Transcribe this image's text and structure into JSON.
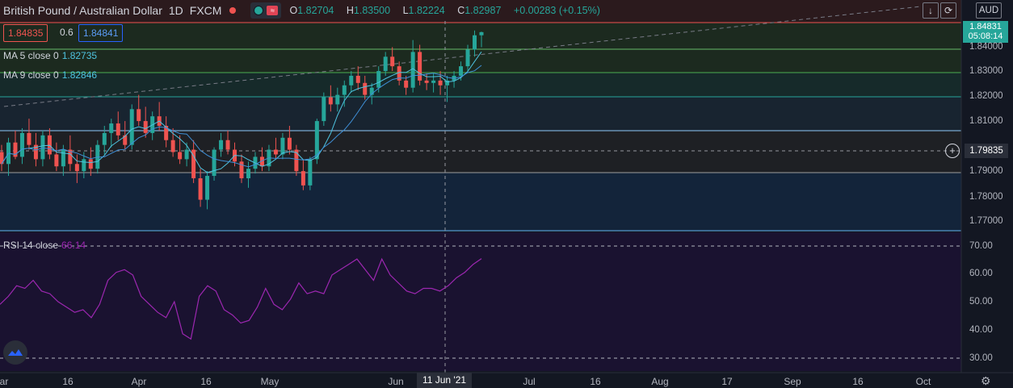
{
  "header": {
    "title": "British Pound / Australian Dollar",
    "interval": "1D",
    "exchange": "FXCM",
    "ohlc": {
      "o_label": "O",
      "o": "1.82704",
      "h_label": "H",
      "h": "1.83500",
      "l_label": "L",
      "l": "1.82224",
      "c_label": "C",
      "c": "1.82987",
      "change": "+0.00283 (+0.15%)"
    }
  },
  "quote": {
    "bid": "1.84835",
    "spread": "0.6",
    "ask": "1.84841"
  },
  "indicators": {
    "ma5": {
      "label": "MA 5 close 0",
      "value": "1.82735"
    },
    "ma9": {
      "label": "MA 9 close 0",
      "value": "1.82846"
    },
    "rsi": {
      "label": "RSI 14 close",
      "value": "66.14"
    }
  },
  "currency_button": "AUD",
  "current_price": {
    "price": "1.84831",
    "countdown": "05:08:14"
  },
  "crosshair": {
    "price": "1.79835",
    "date": "11 Jun '21"
  },
  "price_axis_labels": [
    "1.84000",
    "1.83000",
    "1.82000",
    "1.81000",
    "1.79000",
    "1.78000",
    "1.77000"
  ],
  "rsi_axis_labels": [
    "70.00",
    "60.00",
    "50.00",
    "40.00",
    "30.00"
  ],
  "time_axis_labels": [
    "ar",
    "16",
    "Apr",
    "16",
    "May",
    "Jun",
    "Jul",
    "16",
    "Aug",
    "17",
    "Sep",
    "16",
    "Oct"
  ],
  "colors": {
    "up": "#26a69a",
    "down": "#ef5350",
    "ma": "#4ec3e0",
    "rsi": "#9c27b0",
    "accent": "#2962ff"
  },
  "icons": [
    "download-icon",
    "refresh-icon",
    "settings-gear-icon",
    "crosshair-plus-icon",
    "logo-icon"
  ],
  "chart_data": {
    "type": "candlestick",
    "ylim": [
      1.765,
      1.853
    ],
    "candles": [
      [
        1.798,
        1.801,
        1.79,
        1.793
      ],
      [
        1.793,
        1.804,
        1.788,
        1.802
      ],
      [
        1.802,
        1.807,
        1.795,
        1.796
      ],
      [
        1.796,
        1.808,
        1.793,
        1.806
      ],
      [
        1.806,
        1.812,
        1.799,
        1.801
      ],
      [
        1.801,
        1.806,
        1.792,
        1.795
      ],
      [
        1.795,
        1.807,
        1.792,
        1.805
      ],
      [
        1.805,
        1.808,
        1.795,
        1.797
      ],
      [
        1.797,
        1.802,
        1.79,
        1.792
      ],
      [
        1.792,
        1.801,
        1.788,
        1.799
      ],
      [
        1.799,
        1.805,
        1.79,
        1.793
      ],
      [
        1.793,
        1.797,
        1.785,
        1.79
      ],
      [
        1.79,
        1.798,
        1.787,
        1.795
      ],
      [
        1.795,
        1.8,
        1.788,
        1.791
      ],
      [
        1.791,
        1.803,
        1.789,
        1.801
      ],
      [
        1.801,
        1.809,
        1.797,
        1.806
      ],
      [
        1.806,
        1.812,
        1.8,
        1.81
      ],
      [
        1.81,
        1.815,
        1.803,
        1.805
      ],
      [
        1.805,
        1.811,
        1.799,
        1.801
      ],
      [
        1.801,
        1.818,
        1.799,
        1.816
      ],
      [
        1.816,
        1.822,
        1.809,
        1.811
      ],
      [
        1.811,
        1.817,
        1.804,
        1.806
      ],
      [
        1.806,
        1.815,
        1.803,
        1.813
      ],
      [
        1.813,
        1.819,
        1.807,
        1.809
      ],
      [
        1.809,
        1.813,
        1.8,
        1.803
      ],
      [
        1.803,
        1.808,
        1.796,
        1.798
      ],
      [
        1.798,
        1.805,
        1.793,
        1.795
      ],
      [
        1.795,
        1.802,
        1.792,
        1.799
      ],
      [
        1.799,
        1.803,
        1.785,
        1.787
      ],
      [
        1.787,
        1.791,
        1.775,
        1.778
      ],
      [
        1.778,
        1.79,
        1.774,
        1.788
      ],
      [
        1.788,
        1.8,
        1.786,
        1.799
      ],
      [
        1.799,
        1.806,
        1.796,
        1.803
      ],
      [
        1.803,
        1.807,
        1.797,
        1.799
      ],
      [
        1.799,
        1.802,
        1.792,
        1.794
      ],
      [
        1.794,
        1.797,
        1.785,
        1.787
      ],
      [
        1.787,
        1.794,
        1.783,
        1.791
      ],
      [
        1.791,
        1.798,
        1.789,
        1.796
      ],
      [
        1.796,
        1.8,
        1.79,
        1.792
      ],
      [
        1.792,
        1.801,
        1.79,
        1.799
      ],
      [
        1.799,
        1.804,
        1.795,
        1.797
      ],
      [
        1.797,
        1.806,
        1.795,
        1.804
      ],
      [
        1.804,
        1.809,
        1.797,
        1.799
      ],
      [
        1.799,
        1.801,
        1.788,
        1.79
      ],
      [
        1.79,
        1.795,
        1.782,
        1.784
      ],
      [
        1.784,
        1.796,
        1.782,
        1.795
      ],
      [
        1.795,
        1.812,
        1.793,
        1.811
      ],
      [
        1.811,
        1.823,
        1.809,
        1.821
      ],
      [
        1.821,
        1.826,
        1.815,
        1.818
      ],
      [
        1.818,
        1.825,
        1.815,
        1.822
      ],
      [
        1.822,
        1.828,
        1.817,
        1.826
      ],
      [
        1.826,
        1.832,
        1.823,
        1.83
      ],
      [
        1.83,
        1.834,
        1.824,
        1.827
      ],
      [
        1.827,
        1.83,
        1.82,
        1.822
      ],
      [
        1.822,
        1.827,
        1.818,
        1.825
      ],
      [
        1.825,
        1.834,
        1.823,
        1.832
      ],
      [
        1.832,
        1.84,
        1.83,
        1.838
      ],
      [
        1.838,
        1.842,
        1.832,
        1.834
      ],
      [
        1.834,
        1.836,
        1.826,
        1.828
      ],
      [
        1.828,
        1.83,
        1.822,
        1.825
      ],
      [
        1.825,
        1.845,
        1.823,
        1.84
      ],
      [
        1.84,
        1.843,
        1.826,
        1.828
      ],
      [
        1.828,
        1.831,
        1.824,
        1.827
      ],
      [
        1.827,
        1.831,
        1.823,
        1.828
      ],
      [
        1.828,
        1.832,
        1.822,
        1.826
      ],
      [
        1.826,
        1.83,
        1.819,
        1.828
      ],
      [
        1.828,
        1.832,
        1.825,
        1.83
      ],
      [
        1.83,
        1.836,
        1.828,
        1.834
      ],
      [
        1.834,
        1.843,
        1.832,
        1.841
      ],
      [
        1.841,
        1.849,
        1.838,
        1.847
      ],
      [
        1.847,
        1.8485,
        1.842,
        1.84831
      ]
    ],
    "rsi": [
      49,
      52,
      56,
      55,
      58,
      54,
      53,
      50,
      48,
      46,
      47,
      44,
      49,
      58,
      61,
      62,
      60,
      52,
      49,
      46,
      44,
      50,
      38,
      36,
      52,
      56,
      54,
      47,
      45,
      42,
      43,
      48,
      55,
      49,
      47,
      51,
      57,
      53,
      54,
      53,
      60,
      62,
      64,
      66,
      62,
      58,
      66,
      60,
      57,
      54,
      53,
      55,
      55,
      54,
      56,
      59,
      61,
      64,
      66.14
    ],
    "rsi_ylim": [
      24,
      76
    ]
  }
}
